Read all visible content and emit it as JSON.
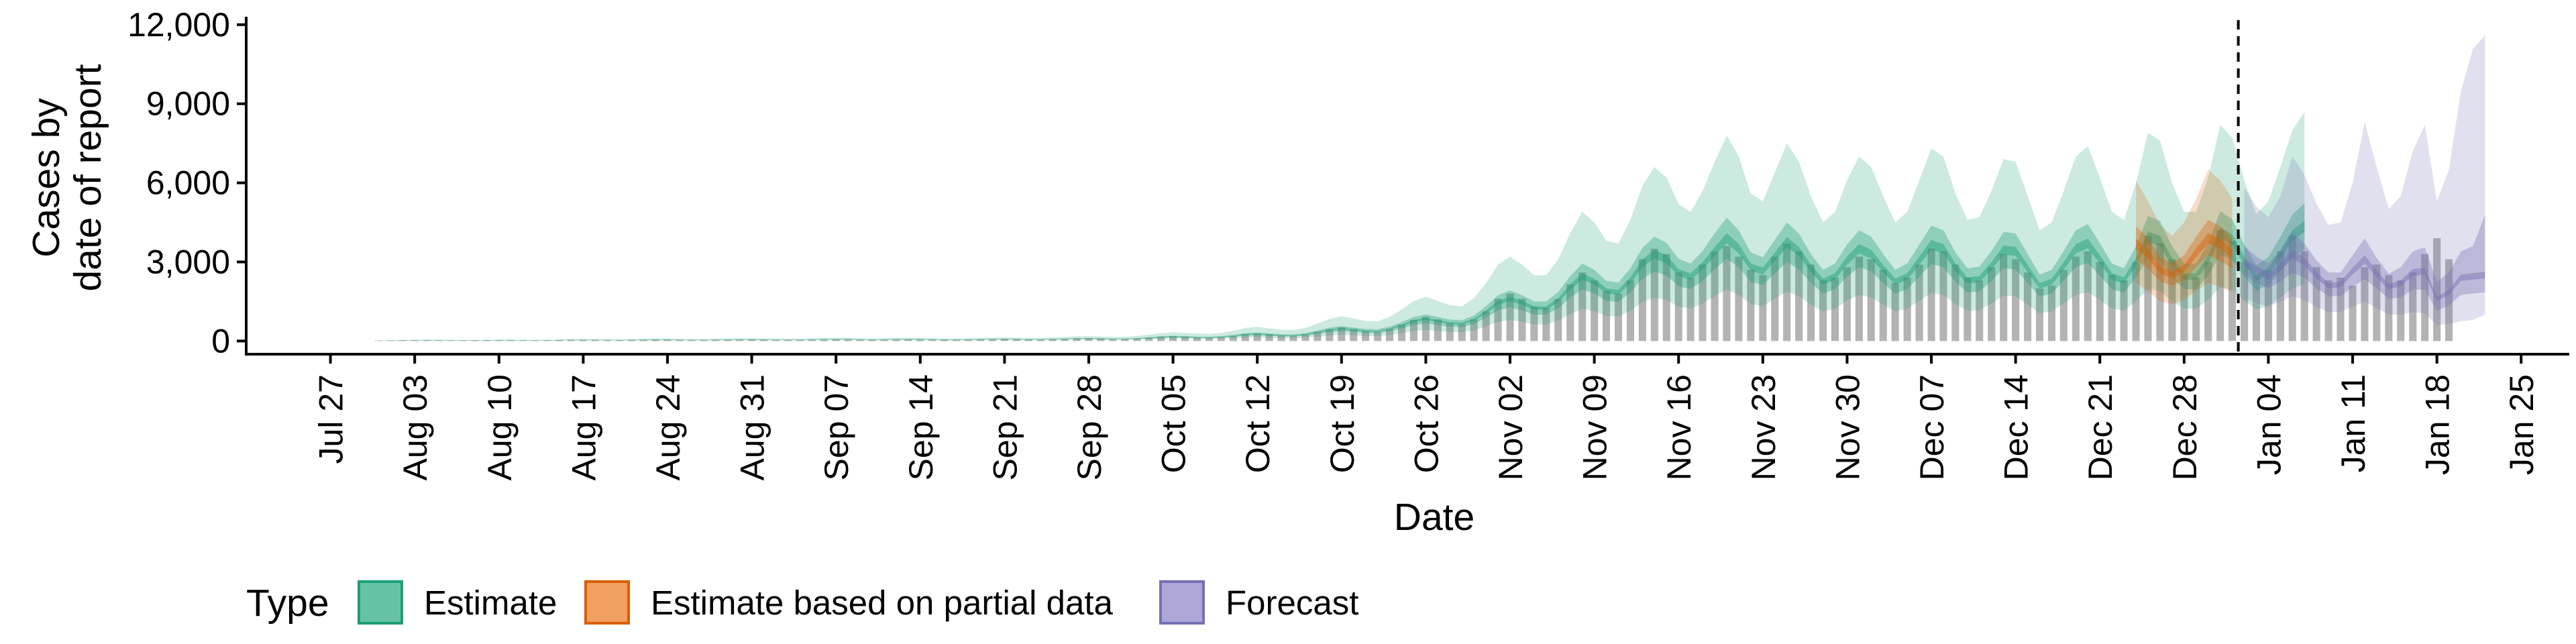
{
  "chart_data": {
    "type": "area",
    "xlabel": "Date",
    "ylabel_lines": [
      "Cases by",
      "date of report"
    ],
    "ylim": [
      -500,
      12300
    ],
    "y_ticks": [
      0,
      3000,
      6000,
      9000,
      12000
    ],
    "y_tick_labels": [
      "0",
      "3,000",
      "6,000",
      "9,000",
      "12,000"
    ],
    "x_ticks": [
      "2020-07-27",
      "2020-08-03",
      "2020-08-10",
      "2020-08-17",
      "2020-08-24",
      "2020-08-31",
      "2020-09-07",
      "2020-09-14",
      "2020-09-21",
      "2020-09-28",
      "2020-10-05",
      "2020-10-12",
      "2020-10-19",
      "2020-10-26",
      "2020-11-02",
      "2020-11-09",
      "2020-11-16",
      "2020-11-23",
      "2020-11-30",
      "2020-12-07",
      "2020-12-14",
      "2020-12-21",
      "2020-12-28",
      "2021-01-04",
      "2021-01-11",
      "2021-01-18",
      "2021-01-25"
    ],
    "x_tick_labels": [
      "Jul 27",
      "Aug 03",
      "Aug 10",
      "Aug 17",
      "Aug 24",
      "Aug 31",
      "Sep 07",
      "Sep 14",
      "Sep 21",
      "Sep 28",
      "Oct 05",
      "Oct 12",
      "Oct 19",
      "Oct 26",
      "Nov 02",
      "Nov 09",
      "Nov 16",
      "Nov 23",
      "Nov 30",
      "Dec 07",
      "Dec 14",
      "Dec 21",
      "Dec 28",
      "Jan 04",
      "Jan 11",
      "Jan 18",
      "Jan 25"
    ],
    "xlim": [
      "2020-07-20",
      "2021-01-29"
    ],
    "forecast_date": "2021-01-01",
    "grid": false,
    "legend": {
      "title": "Type",
      "position": "bottom-left",
      "entries": [
        {
          "label": "Estimate",
          "fill": "#66c2a5",
          "stroke": "#1b9e77"
        },
        {
          "label": "Estimate based on partial data",
          "fill": "#f0a060",
          "stroke": "#d95f02"
        },
        {
          "label": "Forecast",
          "fill": "#ada6d6",
          "stroke": "#7570b3"
        }
      ]
    },
    "colors": {
      "bars": "#b3b3b3",
      "estimate": "#1b9e77",
      "partial": "#d95f02",
      "forecast": "#7570b3",
      "axis": "#000000"
    },
    "observed_cases": {
      "start_date": "2020-07-31",
      "values": [
        20,
        25,
        30,
        30,
        30,
        25,
        20,
        25,
        30,
        35,
        30,
        30,
        25,
        25,
        30,
        40,
        45,
        45,
        40,
        35,
        35,
        40,
        50,
        55,
        55,
        45,
        40,
        40,
        45,
        50,
        55,
        60,
        55,
        45,
        45,
        45,
        55,
        60,
        70,
        70,
        55,
        50,
        55,
        60,
        65,
        65,
        60,
        55,
        50,
        55,
        60,
        70,
        80,
        75,
        65,
        60,
        70,
        80,
        100,
        110,
        100,
        80,
        80,
        100,
        130,
        170,
        190,
        170,
        140,
        130,
        150,
        190,
        260,
        290,
        260,
        210,
        200,
        260,
        350,
        450,
        520,
        460,
        380,
        350,
        460,
        620,
        800,
        920,
        820,
        680,
        640,
        820,
        1120,
        1600,
        1800,
        1600,
        1300,
        1250,
        1600,
        2150,
        2600,
        2300,
        1900,
        1800,
        2300,
        3100,
        3500,
        3300,
        2600,
        2400,
        2900,
        3400,
        3600,
        3200,
        2700,
        2500,
        3200,
        3700,
        3400,
        2900,
        2300,
        2400,
        2800,
        3200,
        3100,
        2700,
        2200,
        2400,
        2900,
        3500,
        3400,
        2900,
        2400,
        2300,
        2800,
        3300,
        3100,
        2600,
        2000,
        2100,
        2700,
        3200,
        3400,
        3000,
        2500,
        2300,
        3000,
        4000,
        3700,
        3100,
        2500,
        2400,
        3000,
        4200,
        3800,
        3000,
        2500,
        2700,
        3400,
        4000,
        3400,
        2800,
        2300,
        2400,
        2100,
        2800,
        2900,
        2500,
        2300,
        2600,
        3300,
        3900,
        3100
      ]
    },
    "series": [
      {
        "name": "Estimate",
        "type": "Estimate",
        "start_date": "2020-07-31",
        "median": [
          10,
          15,
          20,
          25,
          30,
          30,
          25,
          20,
          20,
          25,
          30,
          30,
          28,
          25,
          25,
          30,
          38,
          40,
          38,
          35,
          33,
          38,
          45,
          50,
          48,
          43,
          40,
          40,
          45,
          50,
          53,
          55,
          50,
          45,
          43,
          45,
          53,
          60,
          63,
          60,
          53,
          50,
          53,
          60,
          63,
          60,
          55,
          50,
          48,
          53,
          60,
          65,
          68,
          63,
          58,
          58,
          68,
          80,
          90,
          93,
          85,
          78,
          80,
          95,
          120,
          150,
          165,
          155,
          140,
          135,
          155,
          195,
          250,
          270,
          240,
          215,
          210,
          250,
          330,
          420,
          470,
          430,
          380,
          370,
          460,
          600,
          760,
          840,
          760,
          680,
          660,
          810,
          1100,
          1450,
          1600,
          1450,
          1250,
          1250,
          1550,
          2050,
          2450,
          2250,
          1900,
          1850,
          2300,
          2950,
          3300,
          3100,
          2600,
          2450,
          2850,
          3400,
          3900,
          3500,
          2800,
          2650,
          3200,
          3750,
          3400,
          2750,
          2250,
          2450,
          3050,
          3500,
          3300,
          2750,
          2250,
          2450,
          3050,
          3650,
          3500,
          2800,
          2300,
          2350,
          2850,
          3450,
          3400,
          2750,
          2100,
          2250,
          2850,
          3500,
          3700,
          3100,
          2450,
          2300,
          3000,
          3950,
          3800,
          3000,
          2450,
          2450,
          3100,
          4100,
          3850,
          3050,
          2400,
          2650,
          3300,
          4000,
          4350
        ],
        "lower50": [
          8,
          12,
          16,
          20,
          24,
          24,
          20,
          16,
          16,
          20,
          24,
          24,
          22,
          20,
          20,
          24,
          30,
          32,
          30,
          28,
          26,
          30,
          36,
          40,
          38,
          34,
          32,
          32,
          36,
          40,
          42,
          44,
          40,
          36,
          34,
          36,
          42,
          48,
          50,
          48,
          42,
          40,
          42,
          48,
          50,
          48,
          44,
          40,
          38,
          42,
          48,
          52,
          54,
          50,
          46,
          46,
          54,
          64,
          72,
          74,
          68,
          62,
          64,
          76,
          96,
          120,
          132,
          124,
          112,
          108,
          124,
          156,
          200,
          216,
          192,
          172,
          168,
          200,
          264,
          336,
          376,
          344,
          304,
          296,
          368,
          480,
          608,
          672,
          608,
          544,
          528,
          648,
          880,
          1160,
          1280,
          1160,
          1000,
          1000,
          1240,
          1640,
          1960,
          1800,
          1520,
          1480,
          1840,
          2360,
          2640,
          2480,
          2080,
          1960,
          2280,
          2720,
          3120,
          2800,
          2240,
          2120,
          2560,
          3000,
          2720,
          2200,
          1800,
          1960,
          2440,
          2800,
          2640,
          2200,
          1800,
          1960,
          2440,
          2920,
          2800,
          2240,
          1840,
          1880,
          2280,
          2760,
          2720,
          2200,
          1680,
          1800,
          2280,
          2800,
          2960,
          2480,
          1960,
          1840,
          2400,
          3160,
          3040,
          2400,
          1960,
          1960,
          2480,
          3280,
          3080,
          2440,
          1920,
          2120,
          2640,
          3200,
          3480
        ],
        "upper50": [
          12,
          18,
          24,
          30,
          36,
          36,
          30,
          24,
          24,
          30,
          36,
          36,
          34,
          30,
          30,
          36,
          46,
          48,
          46,
          42,
          40,
          46,
          54,
          60,
          58,
          52,
          48,
          48,
          54,
          60,
          64,
          66,
          60,
          54,
          52,
          54,
          64,
          72,
          76,
          72,
          64,
          60,
          64,
          72,
          76,
          72,
          66,
          60,
          58,
          64,
          72,
          78,
          82,
          76,
          70,
          70,
          82,
          96,
          108,
          112,
          102,
          94,
          96,
          114,
          144,
          180,
          198,
          186,
          168,
          162,
          186,
          234,
          300,
          324,
          288,
          258,
          252,
          300,
          396,
          504,
          564,
          516,
          456,
          444,
          552,
          720,
          912,
          1008,
          912,
          816,
          792,
          972,
          1320,
          1740,
          1920,
          1740,
          1500,
          1500,
          1860,
          2460,
          2940,
          2700,
          2280,
          2220,
          2760,
          3540,
          3960,
          3720,
          3120,
          2940,
          3420,
          4080,
          4680,
          4200,
          3360,
          3180,
          3840,
          4500,
          4080,
          3300,
          2700,
          2940,
          3660,
          4200,
          3960,
          3300,
          2700,
          2940,
          3660,
          4380,
          4200,
          3360,
          2760,
          2820,
          3420,
          4140,
          4080,
          3300,
          2520,
          2700,
          3420,
          4200,
          4440,
          3720,
          2940,
          2760,
          3600,
          4740,
          4560,
          3600,
          2940,
          2940,
          3720,
          4920,
          4620,
          3660,
          2880,
          3180,
          3960,
          4800,
          5220
        ],
        "lower90": [
          4,
          7,
          10,
          12,
          15,
          15,
          12,
          10,
          10,
          12,
          15,
          15,
          14,
          12,
          12,
          15,
          19,
          20,
          19,
          18,
          16,
          19,
          22,
          25,
          24,
          22,
          20,
          20,
          22,
          25,
          26,
          28,
          25,
          22,
          22,
          22,
          26,
          30,
          32,
          30,
          26,
          25,
          26,
          30,
          32,
          30,
          28,
          25,
          24,
          26,
          30,
          32,
          34,
          32,
          29,
          29,
          34,
          40,
          45,
          46,
          42,
          39,
          40,
          48,
          60,
          75,
          82,
          78,
          70,
          68,
          78,
          98,
          125,
          135,
          120,
          108,
          105,
          125,
          165,
          210,
          235,
          215,
          190,
          185,
          230,
          300,
          380,
          420,
          380,
          340,
          330,
          405,
          550,
          725,
          800,
          725,
          625,
          625,
          775,
          1025,
          1225,
          1125,
          950,
          925,
          1150,
          1475,
          1650,
          1550,
          1300,
          1225,
          1425,
          1700,
          1950,
          1750,
          1400,
          1325,
          1600,
          1875,
          1700,
          1375,
          1125,
          1225,
          1525,
          1750,
          1650,
          1375,
          1125,
          1225,
          1525,
          1825,
          1750,
          1400,
          1150,
          1175,
          1425,
          1725,
          1700,
          1375,
          1050,
          1125,
          1425,
          1750,
          1850,
          1550,
          1225,
          1150,
          1500,
          1975,
          1900,
          1500,
          1225,
          1225,
          1550,
          2050,
          1925,
          1525,
          1200,
          1325,
          1650,
          2000,
          2175
        ],
        "upper90": [
          20,
          30,
          40,
          50,
          60,
          60,
          50,
          40,
          40,
          50,
          60,
          60,
          56,
          50,
          50,
          60,
          76,
          80,
          76,
          70,
          66,
          76,
          90,
          100,
          96,
          86,
          80,
          80,
          90,
          100,
          106,
          110,
          100,
          90,
          86,
          90,
          106,
          120,
          126,
          120,
          106,
          100,
          106,
          120,
          126,
          120,
          110,
          100,
          96,
          106,
          120,
          130,
          136,
          126,
          116,
          116,
          136,
          160,
          180,
          186,
          170,
          156,
          160,
          190,
          240,
          300,
          330,
          310,
          280,
          270,
          310,
          390,
          500,
          540,
          480,
          430,
          420,
          500,
          660,
          840,
          940,
          860,
          760,
          740,
          920,
          1200,
          1520,
          1680,
          1520,
          1360,
          1320,
          1620,
          2200,
          2900,
          3200,
          2900,
          2500,
          2500,
          3100,
          4100,
          4900,
          4500,
          3800,
          3700,
          4600,
          5900,
          6600,
          6200,
          5200,
          4900,
          5700,
          6800,
          7800,
          7000,
          5600,
          5300,
          6400,
          7500,
          6800,
          5500,
          4500,
          4900,
          6100,
          7000,
          6600,
          5500,
          4500,
          4900,
          6100,
          7300,
          7000,
          5600,
          4600,
          4700,
          5700,
          6900,
          6800,
          5500,
          4200,
          4500,
          5700,
          7000,
          7400,
          6200,
          4900,
          4600,
          6000,
          7900,
          7600,
          6000,
          4900,
          4900,
          6200,
          8200,
          7700,
          6100,
          4800,
          5300,
          6600,
          8000,
          8700
        ]
      },
      {
        "name": "Estimate based on partial data",
        "type": "Estimate based on partial data",
        "start_date": "2020-12-24",
        "median": [
          3700,
          3300,
          2700,
          2500,
          2750,
          3350,
          3900,
          3700,
          3300
        ],
        "lower50": [
          3100,
          2750,
          2250,
          2100,
          2300,
          2800,
          3250,
          3050,
          2750
        ],
        "upper50": [
          4350,
          3900,
          3200,
          2950,
          3250,
          3950,
          4600,
          4350,
          3900
        ],
        "lower90": [
          2200,
          1900,
          1500,
          1400,
          1550,
          1900,
          2200,
          2050,
          1850
        ],
        "upper90": [
          6100,
          5300,
          4400,
          4000,
          4500,
          5400,
          6500,
          6100,
          5400
        ]
      },
      {
        "name": "Forecast",
        "type": "Forecast",
        "start_date": "2021-01-02",
        "median": [
          3000,
          2700,
          2450,
          2800,
          3300,
          3000,
          2500,
          2100,
          2150,
          2650,
          3100,
          2550,
          2050,
          2200,
          2600,
          2650,
          1600,
          1850,
          2400,
          2450,
          2500
        ],
        "lower50": [
          2500,
          2200,
          2000,
          2250,
          2600,
          2400,
          2000,
          1700,
          1700,
          2050,
          2350,
          2000,
          1600,
          1650,
          1950,
          1950,
          1150,
          1350,
          1750,
          1800,
          1850
        ],
        "upper50": [
          3600,
          3200,
          2950,
          3400,
          4100,
          3700,
          3050,
          2600,
          2600,
          3250,
          3900,
          3150,
          2550,
          2800,
          3400,
          3550,
          2250,
          2600,
          3400,
          3600,
          4800
        ],
        "lower90": [
          1600,
          1450,
          1300,
          1500,
          1700,
          1550,
          1300,
          1100,
          1100,
          1300,
          1500,
          1250,
          1000,
          1000,
          1100,
          1050,
          600,
          650,
          750,
          800,
          1000
        ],
        "upper90": [
          5800,
          5100,
          4700,
          5500,
          7000,
          6300,
          5200,
          4400,
          4500,
          6000,
          8300,
          6600,
          5000,
          5500,
          7200,
          8200,
          5300,
          6500,
          9500,
          11100,
          11600
        ]
      }
    ]
  }
}
